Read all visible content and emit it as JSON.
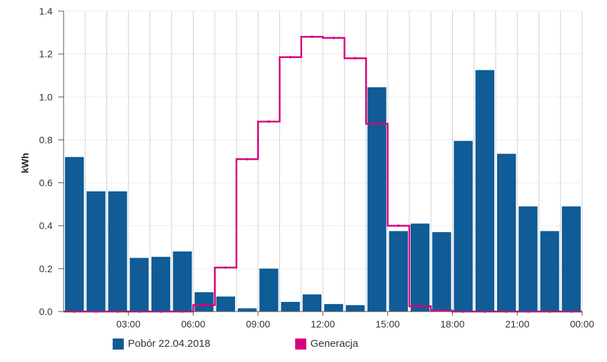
{
  "chart_data": {
    "type": "bar",
    "ylabel": "kWh",
    "ylim": [
      0,
      1.4
    ],
    "yticks": [
      "0.0",
      "0.2",
      "0.4",
      "0.6",
      "0.8",
      "1.0",
      "1.2",
      "1.4"
    ],
    "xticks": [
      "03:00",
      "06:00",
      "09:00",
      "12:00",
      "15:00",
      "18:00",
      "21:00",
      "00:00"
    ],
    "grid": true,
    "legend_position": "bottom",
    "series": [
      {
        "name": "Pobór 22.04.2018",
        "type": "bar",
        "color": "#0f5c96",
        "values": [
          0.72,
          0.56,
          0.56,
          0.25,
          0.255,
          0.28,
          0.09,
          0.07,
          0.015,
          0.2,
          0.045,
          0.08,
          0.035,
          0.03,
          1.045,
          0.375,
          0.41,
          0.37,
          0.795,
          1.125,
          0.735,
          0.49,
          0.375,
          0.49
        ]
      },
      {
        "name": "Generacja",
        "type": "step-line",
        "color": "#d6007e",
        "values": [
          0,
          0,
          0,
          0,
          0,
          0,
          0.03,
          0.205,
          0.71,
          0.885,
          1.185,
          1.28,
          1.275,
          1.18,
          0.875,
          0.4,
          0.025,
          0.005,
          0,
          0,
          0,
          0,
          0,
          0
        ]
      }
    ]
  }
}
